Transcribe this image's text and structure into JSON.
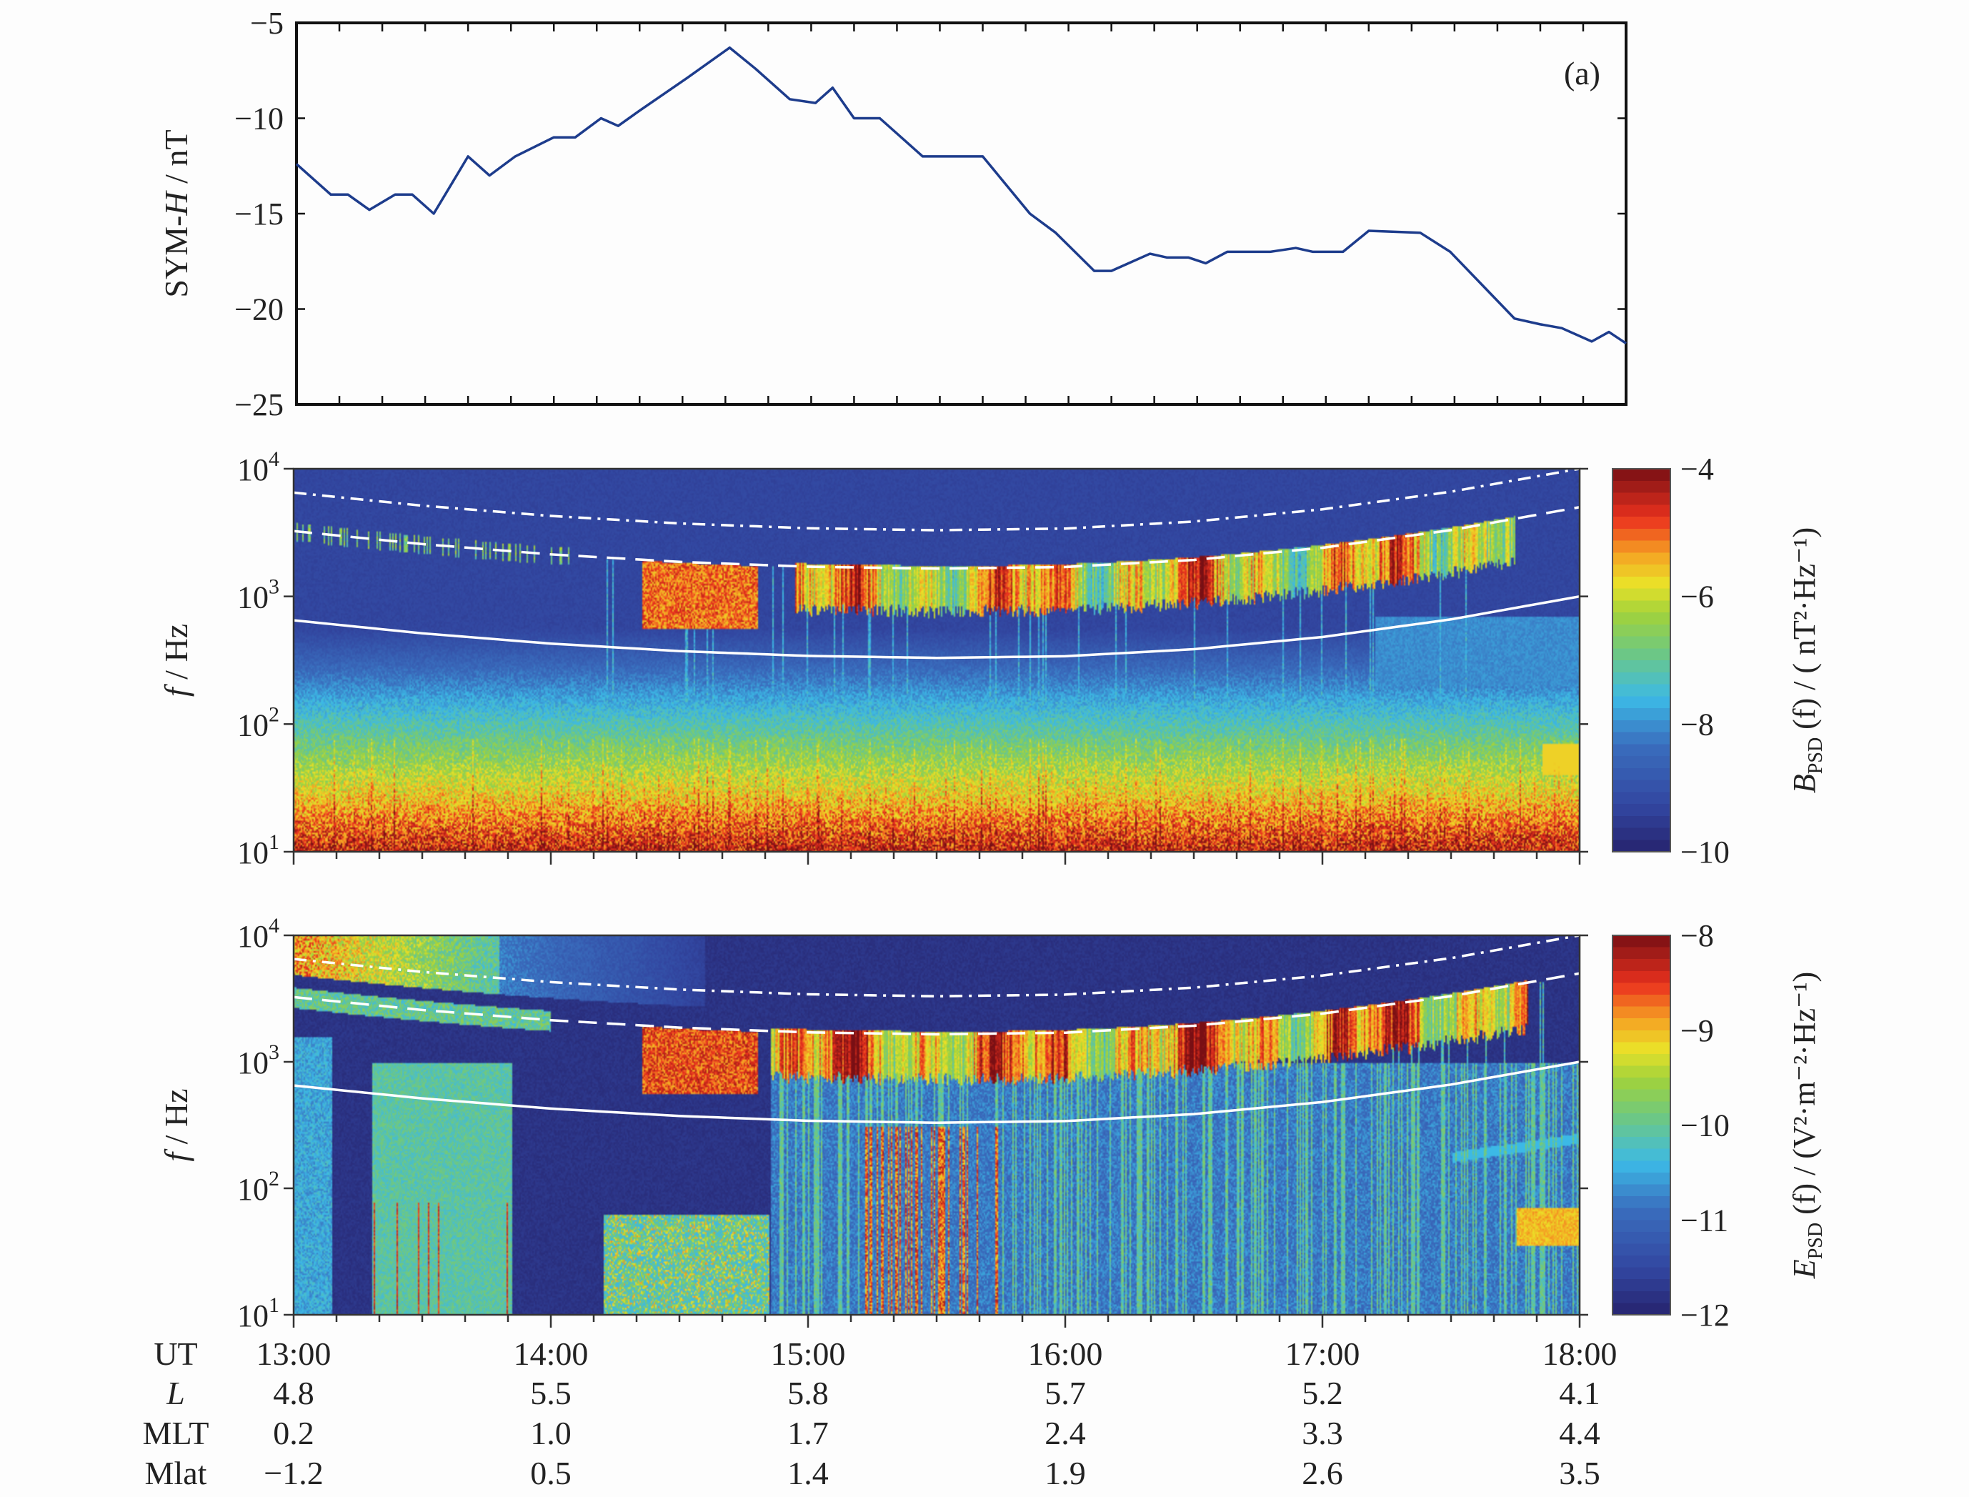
{
  "figure": {
    "panel_label": "(a)"
  },
  "chart_data": [
    {
      "type": "line",
      "panel": "a",
      "ylabel": {
        "prefix": "SYM-",
        "italic": "H",
        "suffix": " / nT"
      },
      "ylim": [
        -25,
        -5
      ],
      "yticks": [
        -5,
        -10,
        -15,
        -20,
        -25
      ],
      "ytick_labels": [
        "−5",
        "−10",
        "−15",
        "−20",
        "−25"
      ],
      "xlim": [
        "13:00",
        "18:10"
      ],
      "color": "#1d3c8c",
      "x": [
        "13:00",
        "13:08",
        "13:12",
        "13:17",
        "13:23",
        "13:27",
        "13:32",
        "13:40",
        "13:45",
        "13:51",
        "14:00",
        "14:05",
        "14:11",
        "14:15",
        "14:20",
        "14:31",
        "14:41",
        "14:47",
        "14:55",
        "15:01",
        "15:05",
        "15:10",
        "15:16",
        "15:26",
        "15:40",
        "15:51",
        "15:57",
        "16:06",
        "16:10",
        "16:19",
        "16:23",
        "16:28",
        "16:32",
        "16:37",
        "16:47",
        "16:53",
        "16:57",
        "17:04",
        "17:10",
        "17:22",
        "17:29",
        "17:44",
        "17:50",
        "17:55",
        "18:02",
        "18:06",
        "18:10"
      ],
      "y": [
        -12.4,
        -14,
        -14,
        -14.8,
        -14,
        -14,
        -15,
        -12,
        -13,
        -12,
        -11,
        -11,
        -10,
        -10.4,
        -9.6,
        -7.9,
        -6.3,
        -7.4,
        -9,
        -9.2,
        -8.4,
        -10,
        -10,
        -12,
        -12,
        -15,
        -16,
        -18,
        -18,
        -17.1,
        -17.3,
        -17.3,
        -17.6,
        -17,
        -17,
        -16.8,
        -17,
        -17,
        -15.9,
        -16,
        -17,
        -20.5,
        -20.8,
        -21,
        -21.7,
        -21.2,
        -21.8
      ]
    },
    {
      "type": "heatmap",
      "panel": "b",
      "ylabel": {
        "italic": "f",
        "suffix": " / Hz"
      },
      "yscale": "log",
      "ylim": [
        10,
        10000
      ],
      "ytick_base": "10",
      "ytick_exponents": [
        "1",
        "2",
        "3",
        "4"
      ],
      "xlim": [
        "13:00",
        "18:00"
      ],
      "colormap": "jet",
      "colorbar": {
        "range": [
          -10,
          -4
        ],
        "ticks": [
          -4,
          -6,
          -8,
          -10
        ],
        "tick_labels": [
          "−4",
          "−6",
          "−8",
          "−10"
        ],
        "label": {
          "var": "B",
          "sub": "PSD",
          "rest": " (f) / ( nT²·Hz⁻¹)"
        }
      },
      "overlay_lines": [
        {
          "style": "dash-dot",
          "color": "#ffffff",
          "x": [
            "13:00",
            "13:30",
            "14:00",
            "14:30",
            "15:00",
            "15:30",
            "16:00",
            "16:30",
            "17:00",
            "17:30",
            "18:00"
          ],
          "y": [
            6500,
            5140,
            4270,
            3730,
            3420,
            3300,
            3400,
            3860,
            4810,
            6610,
            10000
          ]
        },
        {
          "style": "dashed",
          "color": "#ffffff",
          "x": [
            "13:00",
            "13:30",
            "14:00",
            "14:30",
            "15:00",
            "15:30",
            "16:00",
            "16:30",
            "17:00",
            "17:30",
            "18:00"
          ],
          "y": [
            3250,
            2570,
            2135,
            1865,
            1710,
            1650,
            1700,
            1930,
            2405,
            3305,
            5000
          ]
        },
        {
          "style": "solid",
          "color": "#ffffff",
          "x": [
            "13:00",
            "13:30",
            "14:00",
            "14:30",
            "15:00",
            "15:30",
            "16:00",
            "16:30",
            "17:00",
            "17:30",
            "18:00"
          ],
          "y": [
            650,
            514,
            427,
            373,
            342,
            330,
            340,
            386,
            481,
            661,
            1000
          ]
        }
      ]
    },
    {
      "type": "heatmap",
      "panel": "c",
      "ylabel": {
        "italic": "f",
        "suffix": " / Hz"
      },
      "yscale": "log",
      "ylim": [
        10,
        10000
      ],
      "ytick_base": "10",
      "ytick_exponents": [
        "1",
        "2",
        "3",
        "4"
      ],
      "xlim": [
        "13:00",
        "18:00"
      ],
      "colormap": "jet",
      "colorbar": {
        "range": [
          -12,
          -8
        ],
        "ticks": [
          -8,
          -9,
          -10,
          -11,
          -12
        ],
        "tick_labels": [
          "−8",
          "−9",
          "−10",
          "−11",
          "−12"
        ],
        "label": {
          "var": "E",
          "sub": "PSD",
          "rest": " (f) / (V²·m⁻²·Hz⁻¹)"
        }
      },
      "overlay_lines": [
        {
          "style": "dash-dot",
          "color": "#ffffff",
          "x": [
            "13:00",
            "13:30",
            "14:00",
            "14:30",
            "15:00",
            "15:30",
            "16:00",
            "16:30",
            "17:00",
            "17:30",
            "18:00"
          ],
          "y": [
            6500,
            5140,
            4270,
            3730,
            3420,
            3300,
            3400,
            3860,
            4810,
            6610,
            10000
          ]
        },
        {
          "style": "dashed",
          "color": "#ffffff",
          "x": [
            "13:00",
            "13:30",
            "14:00",
            "14:30",
            "15:00",
            "15:30",
            "16:00",
            "16:30",
            "17:00",
            "17:30",
            "18:00"
          ],
          "y": [
            3250,
            2570,
            2135,
            1865,
            1710,
            1650,
            1700,
            1930,
            2405,
            3305,
            5000
          ]
        },
        {
          "style": "solid",
          "color": "#ffffff",
          "x": [
            "13:00",
            "13:30",
            "14:00",
            "14:30",
            "15:00",
            "15:30",
            "16:00",
            "16:30",
            "17:00",
            "17:30",
            "18:00"
          ],
          "y": [
            650,
            514,
            427,
            373,
            342,
            330,
            340,
            386,
            481,
            661,
            1000
          ]
        }
      ]
    }
  ],
  "x_axis_table": {
    "times": [
      "13:00",
      "14:00",
      "15:00",
      "16:00",
      "17:00",
      "18:00"
    ],
    "rows": [
      {
        "label": "UT",
        "italic": false,
        "values": [
          "13:00",
          "14:00",
          "15:00",
          "16:00",
          "17:00",
          "18:00"
        ]
      },
      {
        "label": "L",
        "italic": true,
        "values": [
          "4.8",
          "5.5",
          "5.8",
          "5.7",
          "5.2",
          "4.1"
        ]
      },
      {
        "label": "MLT",
        "italic": false,
        "values": [
          "0.2",
          "1.0",
          "1.7",
          "2.4",
          "3.3",
          "4.4"
        ]
      },
      {
        "label": "Mlat",
        "italic": false,
        "values": [
          "−1.2",
          "0.5",
          "1.4",
          "1.9",
          "2.6",
          "3.5"
        ]
      }
    ]
  }
}
